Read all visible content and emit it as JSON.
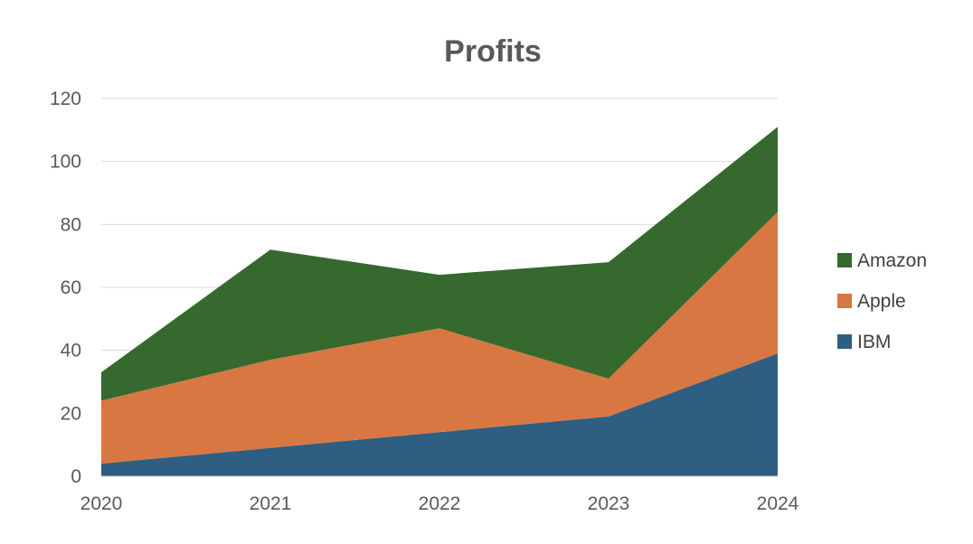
{
  "chart_data": {
    "type": "area",
    "stacked": true,
    "title": "Profits",
    "xlabel": "",
    "ylabel": "",
    "categories": [
      "2020",
      "2021",
      "2022",
      "2023",
      "2024"
    ],
    "ylim": [
      0,
      120
    ],
    "yticks": [
      0,
      20,
      40,
      60,
      80,
      100,
      120
    ],
    "grid": true,
    "legend_position": "right",
    "series": [
      {
        "name": "IBM",
        "values": [
          4,
          9,
          14,
          19,
          39
        ],
        "color": "#2e5e82"
      },
      {
        "name": "Apple",
        "values": [
          20,
          28,
          33,
          12,
          45
        ],
        "color": "#d97742"
      },
      {
        "name": "Amazon",
        "values": [
          9,
          35,
          17,
          37,
          27
        ],
        "color": "#35692e"
      }
    ]
  }
}
